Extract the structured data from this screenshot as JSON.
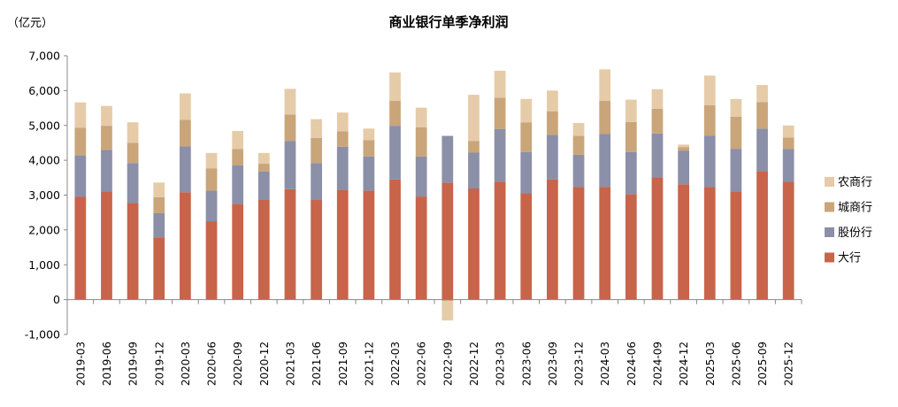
{
  "chart_data": {
    "type": "bar",
    "stacked": true,
    "title": "商业银行单季净利润",
    "unit_label": "（亿元）",
    "ylim": [
      -1000,
      7000
    ],
    "yticks": [
      -1000,
      0,
      1000,
      2000,
      3000,
      4000,
      5000,
      6000,
      7000
    ],
    "ytick_labels": [
      "-1,000",
      "0",
      "1,000",
      "2,000",
      "3,000",
      "4,000",
      "5,000",
      "6,000",
      "7,000"
    ],
    "grid": false,
    "legend_position": "right",
    "categories": [
      "2019-03",
      "2019-06",
      "2019-09",
      "2019-12",
      "2020-03",
      "2020-06",
      "2020-09",
      "2020-12",
      "2021-03",
      "2021-06",
      "2021-09",
      "2021-12",
      "2022-03",
      "2022-06",
      "2022-09",
      "2022-12",
      "2023-03",
      "2023-06",
      "2023-09",
      "2023-12",
      "2024-03",
      "2024-06",
      "2024-09",
      "2024-12",
      "2025-03",
      "2025-06",
      "2025-09",
      "2025-12"
    ],
    "series": [
      {
        "name": "大行",
        "color": "#c8644a",
        "values": [
          2950,
          3100,
          2770,
          1790,
          3080,
          2250,
          2750,
          2860,
          3170,
          2860,
          3150,
          3130,
          3450,
          2960,
          3360,
          3190,
          3390,
          3050,
          3450,
          3230,
          3230,
          3030,
          3510,
          3310,
          3230,
          3110,
          3690,
          3380
        ]
      },
      {
        "name": "股份行",
        "color": "#8b8fa8",
        "values": [
          1190,
          1200,
          1150,
          690,
          1320,
          880,
          1100,
          820,
          1380,
          1060,
          1240,
          980,
          1540,
          1150,
          1340,
          1030,
          1510,
          1190,
          1280,
          930,
          1530,
          1210,
          1260,
          970,
          1480,
          1220,
          1220,
          940
        ]
      },
      {
        "name": "城商行",
        "color": "#c9a579",
        "values": [
          790,
          690,
          580,
          460,
          760,
          640,
          470,
          220,
          760,
          720,
          440,
          470,
          720,
          840,
          -40,
          330,
          900,
          850,
          670,
          540,
          950,
          860,
          710,
          100,
          870,
          920,
          760,
          330
        ]
      },
      {
        "name": "农商行",
        "color": "#e6cba9",
        "values": [
          730,
          570,
          590,
          420,
          760,
          440,
          520,
          310,
          740,
          540,
          540,
          330,
          810,
          560,
          -560,
          1330,
          770,
          670,
          600,
          370,
          900,
          640,
          560,
          70,
          850,
          510,
          490,
          350
        ]
      }
    ]
  }
}
